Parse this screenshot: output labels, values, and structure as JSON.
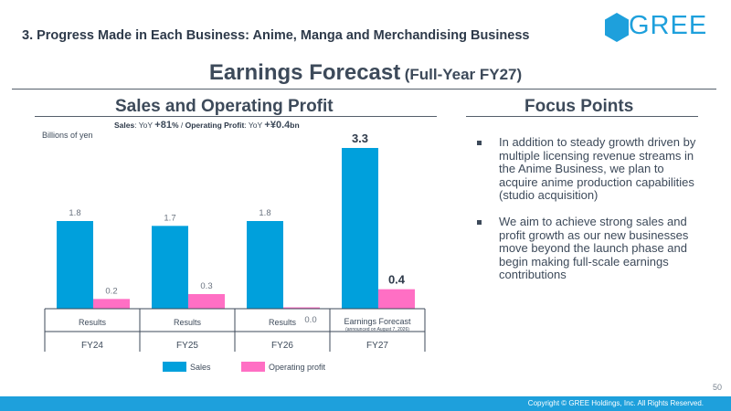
{
  "header": {
    "section_title": "3. Progress Made in Each Business: Anime, Manga and Merchandising Business",
    "logo_text": "GREE",
    "brand_color": "#1ea0dc"
  },
  "title": {
    "main": "Earnings Forecast",
    "sub": "(Full-Year FY27)"
  },
  "left_panel": {
    "heading": "Sales and Operating Profit",
    "yoy_sales_label": "Sales",
    "yoy_sales_prefix": ": YoY ",
    "yoy_sales_value": "+81",
    "yoy_sales_unit": "%",
    "yoy_sep": " / ",
    "yoy_op_label": "Operating Profit",
    "yoy_op_prefix": ": YoY ",
    "yoy_op_value": "+¥0.4",
    "yoy_op_unit": "bn",
    "unit_label": "Billions of yen"
  },
  "chart_data": {
    "type": "bar",
    "categories": [
      "FY24",
      "FY25",
      "FY26",
      "FY27"
    ],
    "sub_labels": [
      "Results",
      "Results",
      "Results",
      "Earnings Forecast"
    ],
    "sub_notes": [
      "",
      "",
      "",
      "(announced on August 7, 2026)"
    ],
    "series": [
      {
        "name": "Sales",
        "color": "#00a0dc",
        "values": [
          1.8,
          1.7,
          1.8,
          3.3
        ],
        "labels": [
          "1.8",
          "1.7",
          "1.8",
          "3.3"
        ]
      },
      {
        "name": "Operating profit",
        "color": "#ff6fc4",
        "values": [
          0.2,
          0.3,
          0.0,
          0.4
        ],
        "labels": [
          "0.2",
          "0.3",
          "0.0",
          "0.4"
        ]
      }
    ],
    "emphasized_category": "FY27",
    "ylim": [
      0,
      3.3
    ],
    "legend_position": "bottom",
    "xlabel": "",
    "ylabel": ""
  },
  "right_panel": {
    "heading": "Focus Points",
    "bullets": [
      "In addition to steady growth driven by multiple licensing revenue streams in the Anime Business, we plan to acquire anime production capabilities (studio acquisition)",
      "We aim to achieve strong sales and profit growth as our new businesses move beyond the launch phase and begin making full-scale earnings contributions"
    ]
  },
  "footer": {
    "page_number": "50",
    "copyright": "Copyright © GREE Holdings, Inc. All Rights Reserved."
  }
}
